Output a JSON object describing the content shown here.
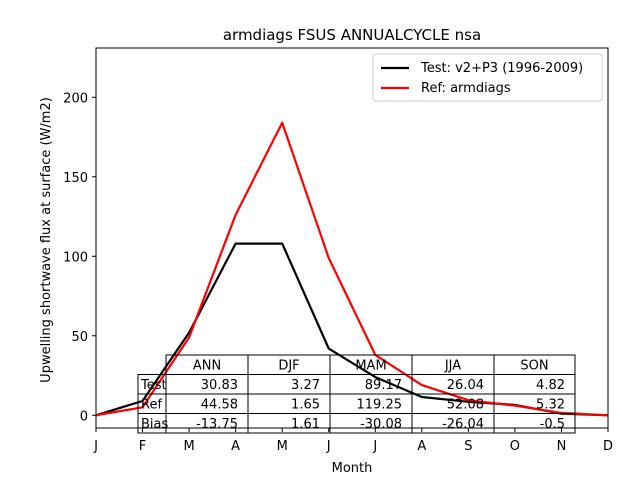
{
  "chart_data": {
    "type": "line",
    "title": "armdiags FSUS ANNUALCYCLE nsa",
    "xlabel": "Month",
    "ylabel": "Upwelling shortwave flux at surface (W/m2)",
    "ylim": [
      -8,
      231
    ],
    "yticks": [
      0,
      50,
      100,
      150,
      200
    ],
    "categories": [
      "J",
      "F",
      "M",
      "A",
      "M",
      "J",
      "J",
      "A",
      "S",
      "O",
      "N",
      "D"
    ],
    "series": [
      {
        "name": "Test: v2+P3 (1996-2009)",
        "color": "#000000",
        "values": [
          0.0,
          9.0,
          52.0,
          108.0,
          108.0,
          42.0,
          24.0,
          11.5,
          8.5,
          6.5,
          1.0,
          0.0
        ]
      },
      {
        "name": "Ref: armdiags",
        "color": "#ff0000",
        "values": [
          0.0,
          5.0,
          49.0,
          126.0,
          184.0,
          99.0,
          38.0,
          19.0,
          9.5,
          6.0,
          1.5,
          0.0
        ]
      }
    ],
    "legend_position": "top-right",
    "table": {
      "col_labels": [
        "ANN",
        "DJF",
        "MAM",
        "JJA",
        "SON"
      ],
      "row_labels": [
        "Test",
        "Ref",
        "Bias"
      ],
      "cells": [
        [
          "30.83",
          "3.27",
          "89.17",
          "26.04",
          "4.82"
        ],
        [
          "44.58",
          "1.65",
          "119.25",
          "52.08",
          "5.32"
        ],
        [
          "-13.75",
          "1.61",
          "-30.08",
          "-26.04",
          "-0.5"
        ]
      ]
    }
  }
}
